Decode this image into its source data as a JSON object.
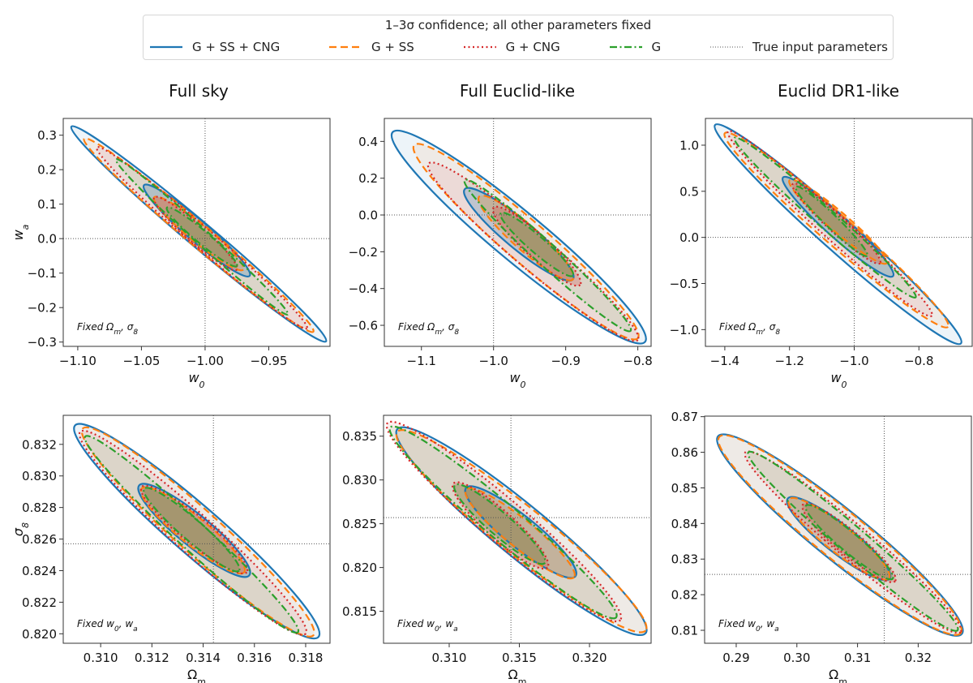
{
  "legend": {
    "title": "1–3σ confidence; all other parameters fixed",
    "entries": [
      {
        "label": "G + SS + CNG",
        "color": "#1f77b4",
        "style": "solid"
      },
      {
        "label": "G + SS",
        "color": "#ff7f0e",
        "style": "dashed"
      },
      {
        "label": "G + CNG",
        "color": "#d62728",
        "style": "dotted"
      },
      {
        "label": "G",
        "color": "#2ca02c",
        "style": "dashdot"
      },
      {
        "label": "True input parameters",
        "color": "#555555",
        "style": "fine-dotted"
      }
    ]
  },
  "column_titles": [
    "Full sky",
    "Full Euclid-like",
    "Euclid DR1-like"
  ],
  "chart_data": [
    {
      "type": "contour",
      "column": "Full sky",
      "row": 1,
      "xlabel": [
        {
          "t": "w"
        },
        {
          "t": "0",
          "sub": true
        }
      ],
      "ylabel": [
        {
          "t": "w"
        },
        {
          "t": "a",
          "sub": true
        }
      ],
      "xlim": [
        -1.1114,
        -0.9019
      ],
      "ylim": [
        -0.3125,
        0.3486
      ],
      "xticks": [
        [
          -1.1,
          "−1.10"
        ],
        [
          -1.05,
          "−1.05"
        ],
        [
          -1.0,
          "−1.00"
        ],
        [
          -0.95,
          "−0.95"
        ]
      ],
      "yticks": [
        [
          0.3,
          "0.3"
        ],
        [
          0.2,
          "0.2"
        ],
        [
          0.1,
          "0.1"
        ],
        [
          0.0,
          "0.0"
        ],
        [
          -0.1,
          "−0.1"
        ],
        [
          -0.2,
          "−0.2"
        ],
        [
          -0.3,
          "−0.3"
        ]
      ],
      "truth": [
        -1.0,
        0.0
      ],
      "annotation": [
        {
          "t": "Fixed Ω"
        },
        {
          "t": "m",
          "sub": true
        },
        {
          "t": ", σ"
        },
        {
          "t": "8",
          "sub": true
        }
      ],
      "contours": {
        "G + SS + CNG": {
          "outer": [
            -1.105,
            0.325,
            -0.905,
            -0.298,
            0.075
          ],
          "inner": [
            -1.048,
            0.155,
            -0.965,
            -0.108,
            0.15
          ]
        },
        "G + SS": {
          "outer": [
            -1.095,
            0.29,
            -0.915,
            -0.27,
            0.075
          ],
          "inner": [
            -1.04,
            0.12,
            -0.97,
            -0.09,
            0.16
          ]
        },
        "G + CNG": {
          "outer": [
            -1.085,
            0.265,
            -0.92,
            -0.26,
            0.075
          ],
          "inner": [
            -1.04,
            0.12,
            -0.975,
            -0.09,
            0.16
          ]
        },
        "G": {
          "outer": [
            -1.07,
            0.23,
            -0.935,
            -0.22,
            0.065
          ],
          "inner": [
            -1.03,
            0.09,
            -0.975,
            -0.08,
            0.14
          ]
        }
      }
    },
    {
      "type": "contour",
      "column": "Full Euclid-like",
      "row": 1,
      "xlabel": [
        {
          "t": "w"
        },
        {
          "t": "0",
          "sub": true
        }
      ],
      "ylabel": [],
      "xlim": [
        -1.1514,
        -0.7816
      ],
      "ylim": [
        -0.7145,
        0.525
      ],
      "xticks": [
        [
          -1.1,
          "−1.1"
        ],
        [
          -1.0,
          "−1.0"
        ],
        [
          -0.9,
          "−0.9"
        ],
        [
          -0.8,
          "−0.8"
        ]
      ],
      "yticks": [
        [
          0.4,
          "0.4"
        ],
        [
          0.2,
          "0.2"
        ],
        [
          0.0,
          "0.0"
        ],
        [
          -0.2,
          "−0.2"
        ],
        [
          -0.4,
          "−0.4"
        ],
        [
          -0.6,
          "−0.6"
        ]
      ],
      "truth": [
        -1.0,
        0.0
      ],
      "annotation": [
        {
          "t": "Fixed Ω"
        },
        {
          "t": "m",
          "sub": true
        },
        {
          "t": ", σ"
        },
        {
          "t": "8",
          "sub": true
        }
      ],
      "contours": {
        "G + SS + CNG": {
          "outer": [
            -1.14,
            0.45,
            -0.79,
            -0.69,
            0.15
          ],
          "inner": [
            -1.04,
            0.14,
            -0.89,
            -0.35,
            0.2
          ]
        },
        "G + SS": {
          "outer": [
            -1.11,
            0.38,
            -0.8,
            -0.67,
            0.14
          ],
          "inner": [
            -1.02,
            0.1,
            -0.89,
            -0.35,
            0.2
          ]
        },
        "G + CNG": {
          "outer": [
            -1.09,
            0.28,
            -0.8,
            -0.68,
            0.13
          ],
          "inner": [
            -1.0,
            0.04,
            -0.88,
            -0.38,
            0.2
          ]
        },
        "G": {
          "outer": [
            -1.04,
            0.19,
            -0.81,
            -0.63,
            0.1
          ],
          "inner": [
            -0.99,
            0.01,
            -0.89,
            -0.33,
            0.17
          ]
        }
      }
    },
    {
      "type": "contour",
      "column": "Euclid DR1-like",
      "row": 1,
      "xlabel": [
        {
          "t": "w"
        },
        {
          "t": "0",
          "sub": true
        }
      ],
      "ylabel": [],
      "xlim": [
        -1.4599,
        -0.6353
      ],
      "ylim": [
        -1.1816,
        1.29
      ],
      "xticks": [
        [
          -1.4,
          "−1.4"
        ],
        [
          -1.2,
          "−1.2"
        ],
        [
          -1.0,
          "−1.0"
        ],
        [
          -0.8,
          "−0.8"
        ]
      ],
      "yticks": [
        [
          1.0,
          "1.0"
        ],
        [
          0.5,
          "0.5"
        ],
        [
          0.0,
          "0.0"
        ],
        [
          -0.5,
          "−0.5"
        ],
        [
          -1.0,
          "−1.0"
        ]
      ],
      "truth": [
        -1.0,
        0.0
      ],
      "annotation": [
        {
          "t": "Fixed Ω"
        },
        {
          "t": "m",
          "sub": true
        },
        {
          "t": ", σ"
        },
        {
          "t": "8",
          "sub": true
        }
      ],
      "contours": {
        "G + SS + CNG": {
          "outer": [
            -1.43,
            1.22,
            -0.67,
            -1.15,
            0.1
          ],
          "inner": [
            -1.22,
            0.65,
            -0.88,
            -0.42,
            0.15
          ]
        },
        "G + SS": {
          "outer": [
            -1.4,
            1.13,
            -0.71,
            -0.97,
            0.1
          ],
          "inner": [
            -1.2,
            0.62,
            -0.9,
            -0.28,
            0.15
          ]
        },
        "G + CNG": {
          "outer": [
            -1.39,
            1.15,
            -0.76,
            -0.85,
            0.09
          ],
          "inner": [
            -1.19,
            0.58,
            -0.92,
            -0.28,
            0.15
          ]
        },
        "G": {
          "outer": [
            -1.37,
            1.08,
            -0.81,
            -0.65,
            0.08
          ],
          "inner": [
            -1.18,
            0.55,
            -0.96,
            -0.2,
            0.13
          ]
        }
      }
    },
    {
      "type": "contour",
      "column": "Full sky",
      "row": 2,
      "xlabel": [
        {
          "t": "Ω"
        },
        {
          "t": "m",
          "sub": true
        }
      ],
      "ylabel": [
        {
          "t": "σ"
        },
        {
          "t": "8",
          "sub": true
        }
      ],
      "xlim": [
        0.30854,
        0.31895
      ],
      "ylim": [
        0.8194,
        0.83384
      ],
      "xticks": [
        [
          0.31,
          "0.310"
        ],
        [
          0.312,
          "0.312"
        ],
        [
          0.314,
          "0.314"
        ],
        [
          0.316,
          "0.316"
        ],
        [
          0.318,
          "0.318"
        ]
      ],
      "yticks": [
        [
          0.832,
          "0.832"
        ],
        [
          0.83,
          "0.830"
        ],
        [
          0.828,
          "0.828"
        ],
        [
          0.826,
          "0.826"
        ],
        [
          0.824,
          "0.824"
        ],
        [
          0.822,
          "0.822"
        ],
        [
          0.82,
          "0.820"
        ]
      ],
      "truth": [
        0.3144,
        0.8257
      ],
      "annotation": [
        {
          "t": "Fixed w"
        },
        {
          "t": "0",
          "sub": true
        },
        {
          "t": ", w"
        },
        {
          "t": "a",
          "sub": true
        }
      ],
      "contours": {
        "G + SS + CNG": {
          "outer": [
            0.309,
            0.8332,
            0.3185,
            0.8198,
            0.15
          ],
          "inner": [
            0.3115,
            0.8294,
            0.3158,
            0.8237,
            0.22
          ]
        },
        "G + SS": {
          "outer": [
            0.3093,
            0.833,
            0.3183,
            0.8199,
            0.14
          ],
          "inner": [
            0.3116,
            0.8292,
            0.3156,
            0.8239,
            0.21
          ]
        },
        "G + CNG": {
          "outer": [
            0.3092,
            0.8328,
            0.318,
            0.82,
            0.13
          ],
          "inner": [
            0.3116,
            0.8293,
            0.3157,
            0.8239,
            0.2
          ]
        },
        "G": {
          "outer": [
            0.3094,
            0.8325,
            0.3177,
            0.8201,
            0.1
          ],
          "inner": [
            0.3117,
            0.8292,
            0.3154,
            0.824,
            0.17
          ]
        }
      }
    },
    {
      "type": "contour",
      "column": "Full Euclid-like",
      "row": 2,
      "xlabel": [
        {
          "t": "Ω"
        },
        {
          "t": "m",
          "sub": true
        }
      ],
      "ylabel": [],
      "xlim": [
        0.30532,
        0.32439
      ],
      "ylim": [
        0.81135,
        0.83738
      ],
      "xticks": [
        [
          0.31,
          "0.310"
        ],
        [
          0.315,
          "0.315"
        ],
        [
          0.32,
          "0.320"
        ]
      ],
      "yticks": [
        [
          0.835,
          "0.835"
        ],
        [
          0.83,
          "0.830"
        ],
        [
          0.825,
          "0.825"
        ],
        [
          0.82,
          "0.820"
        ],
        [
          0.815,
          "0.815"
        ]
      ],
      "truth": [
        0.3144,
        0.8257
      ],
      "annotation": [
        {
          "t": "Fixed w"
        },
        {
          "t": "0",
          "sub": true
        },
        {
          "t": ", w"
        },
        {
          "t": "a",
          "sub": true
        }
      ],
      "contours": {
        "G + SS + CNG": {
          "outer": [
            0.3063,
            0.8358,
            0.324,
            0.8125,
            0.16
          ],
          "inner": [
            0.3112,
            0.8291,
            0.319,
            0.819,
            0.22
          ]
        },
        "G + SS": {
          "outer": [
            0.3063,
            0.8355,
            0.324,
            0.8128,
            0.15
          ],
          "inner": [
            0.3112,
            0.8289,
            0.3189,
            0.8189,
            0.2
          ]
        },
        "G + CNG": {
          "outer": [
            0.3056,
            0.8365,
            0.3222,
            0.814,
            0.14
          ],
          "inner": [
            0.3103,
            0.8296,
            0.317,
            0.82,
            0.22
          ]
        },
        "G": {
          "outer": [
            0.3058,
            0.836,
            0.3219,
            0.8143,
            0.12
          ],
          "inner": [
            0.3104,
            0.8294,
            0.3168,
            0.8205,
            0.19
          ]
        }
      }
    },
    {
      "type": "contour",
      "column": "Euclid DR1-like",
      "row": 2,
      "xlabel": [
        {
          "t": "Ω"
        },
        {
          "t": "m",
          "sub": true
        }
      ],
      "ylabel": [],
      "xlim": [
        0.28479,
        0.32877
      ],
      "ylim": [
        0.80636,
        0.87015
      ],
      "xticks": [
        [
          0.29,
          "0.29"
        ],
        [
          0.3,
          "0.30"
        ],
        [
          0.31,
          "0.31"
        ],
        [
          0.32,
          "0.32"
        ]
      ],
      "yticks": [
        [
          0.87,
          "0.87"
        ],
        [
          0.86,
          "0.86"
        ],
        [
          0.85,
          "0.85"
        ],
        [
          0.84,
          "0.84"
        ],
        [
          0.83,
          "0.83"
        ],
        [
          0.82,
          "0.82"
        ],
        [
          0.81,
          "0.81"
        ]
      ],
      "truth": [
        0.3144,
        0.8257
      ],
      "annotation": [
        {
          "t": "Fixed w"
        },
        {
          "t": "0",
          "sub": true
        },
        {
          "t": ", w"
        },
        {
          "t": "a",
          "sub": true
        }
      ],
      "contours": {
        "G + SS + CNG": {
          "outer": [
            0.287,
            0.8645,
            0.3272,
            0.809,
            0.16
          ],
          "inner": [
            0.2985,
            0.847,
            0.3153,
            0.8245,
            0.22
          ]
        },
        "G + SS": {
          "outer": [
            0.2872,
            0.8643,
            0.327,
            0.8092,
            0.155
          ],
          "inner": [
            0.2987,
            0.8468,
            0.3152,
            0.8246,
            0.21
          ]
        },
        "G + CNG": {
          "outer": [
            0.2915,
            0.86,
            0.327,
            0.8095,
            0.12
          ],
          "inner": [
            0.301,
            0.8453,
            0.3162,
            0.8238,
            0.2
          ]
        },
        "G": {
          "outer": [
            0.292,
            0.86,
            0.3265,
            0.81,
            0.1
          ],
          "inner": [
            0.3015,
            0.845,
            0.3158,
            0.8245,
            0.17
          ]
        }
      }
    }
  ]
}
